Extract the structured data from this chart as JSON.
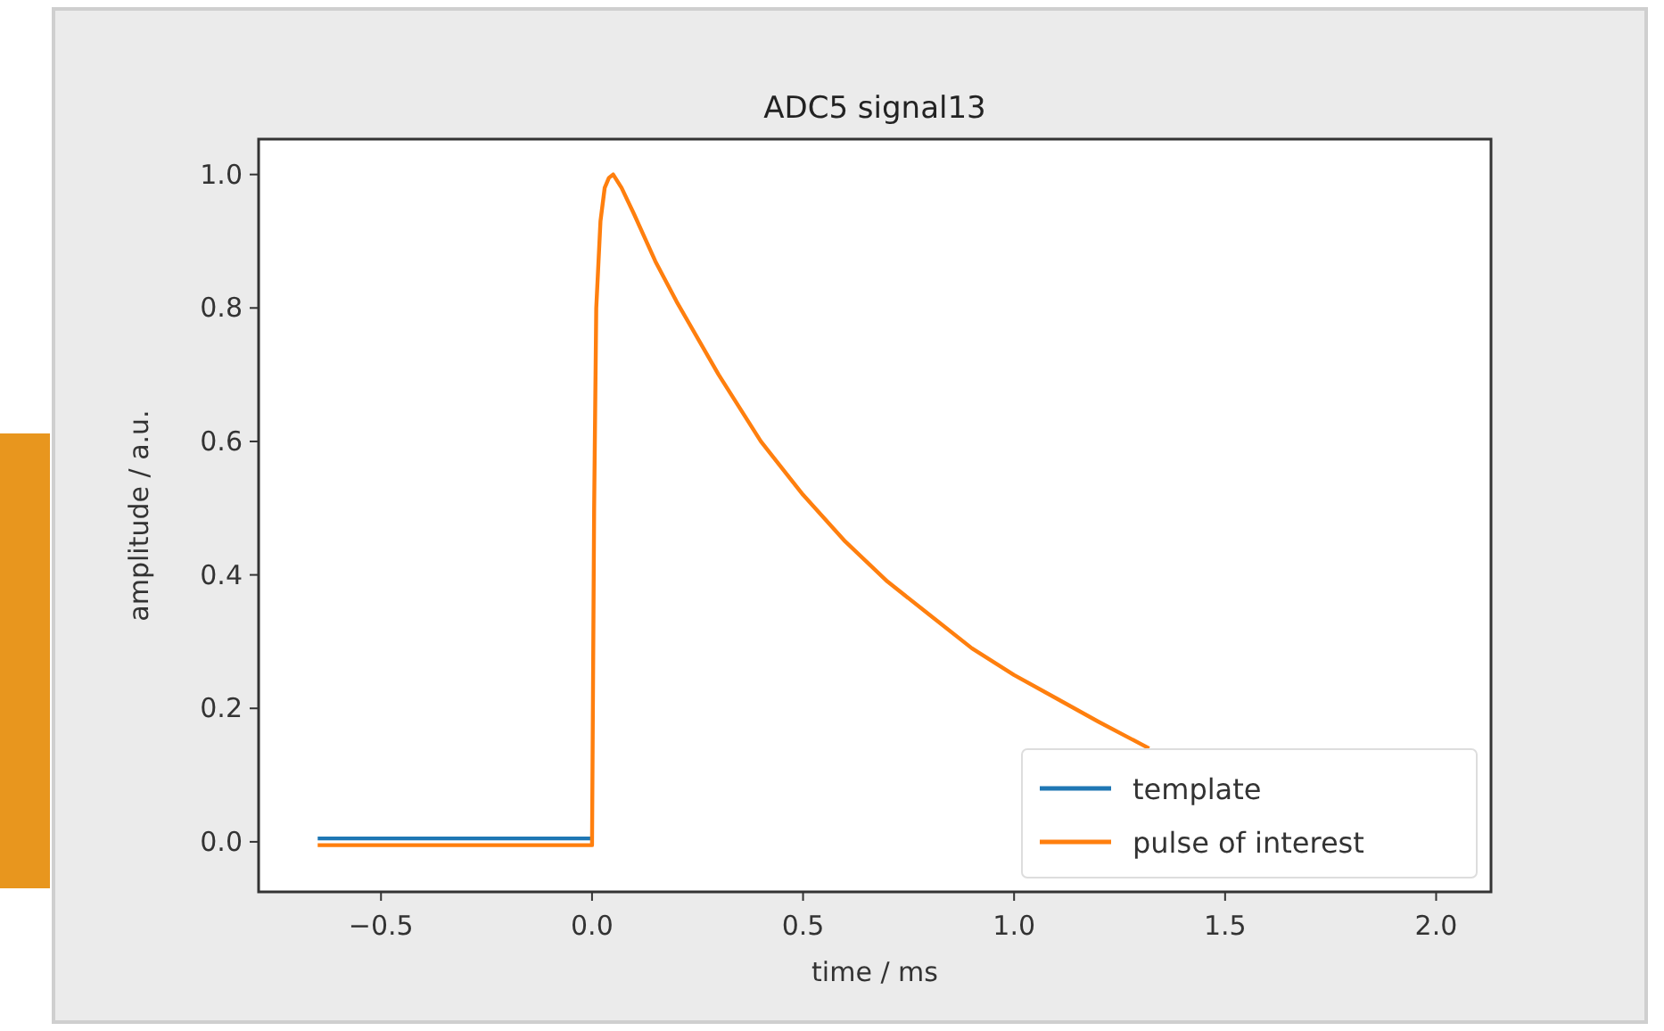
{
  "chart_data": {
    "type": "line",
    "title": "ADC5 signal13",
    "xlabel": "time / ms",
    "ylabel": "amplitude / a.u.",
    "x": [
      -0.65,
      -0.3,
      0.0,
      0.005,
      0.01,
      0.02,
      0.03,
      0.04,
      0.05,
      0.07,
      0.1,
      0.15,
      0.2,
      0.3,
      0.4,
      0.5,
      0.6,
      0.7,
      0.8,
      0.9,
      1.0,
      1.1,
      1.2,
      1.32
    ],
    "series": [
      {
        "name": "template",
        "color": "#1f77b4",
        "values": [
          0.005,
          0.005,
          0.005,
          null,
          null,
          null,
          null,
          null,
          null,
          null,
          null,
          null,
          null,
          null,
          null,
          null,
          null,
          null,
          null,
          null,
          null,
          null,
          null,
          null
        ]
      },
      {
        "name": "pulse of interest",
        "color": "#ff7f0e",
        "values": [
          -0.005,
          -0.005,
          -0.005,
          0.5,
          0.8,
          0.93,
          0.98,
          0.995,
          1.0,
          0.98,
          0.94,
          0.87,
          0.81,
          0.7,
          0.6,
          0.52,
          0.45,
          0.39,
          0.34,
          0.29,
          0.25,
          0.215,
          0.18,
          0.14
        ]
      }
    ],
    "xlim": [
      -0.79,
      2.13
    ],
    "ylim": [
      -0.075,
      1.053
    ],
    "xticks": [
      {
        "value": -0.5,
        "label": "−0.5"
      },
      {
        "value": 0,
        "label": "0.0"
      },
      {
        "value": 0.5,
        "label": "0.5"
      },
      {
        "value": 1,
        "label": "1.0"
      },
      {
        "value": 1.5,
        "label": "1.5"
      },
      {
        "value": 2,
        "label": "2.0"
      }
    ],
    "yticks": [
      {
        "value": 0,
        "label": "0.0"
      },
      {
        "value": 0.2,
        "label": "0.2"
      },
      {
        "value": 0.4,
        "label": "0.4"
      },
      {
        "value": 0.6,
        "label": "0.6"
      },
      {
        "value": 0.8,
        "label": "0.8"
      },
      {
        "value": 1,
        "label": "1.0"
      }
    ],
    "legend": "bottom right",
    "grid": false,
    "marker": "none",
    "line_style": "solid"
  }
}
